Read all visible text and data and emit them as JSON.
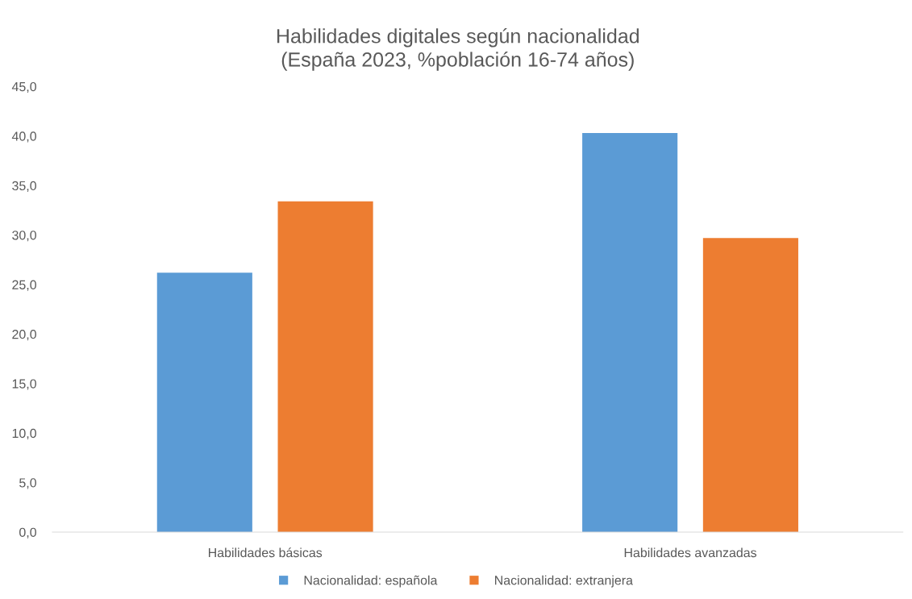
{
  "chart_data": {
    "type": "bar",
    "title": "Habilidades digitales según nacionalidad\n(España 2023, %población 16-74 años)",
    "categories": [
      "Habilidades básicas",
      "Habilidades avanzadas"
    ],
    "series": [
      {
        "name": "Nacionalidad: española",
        "color": "#5b9bd5",
        "values": [
          26.2,
          40.3
        ]
      },
      {
        "name": "Nacionalidad: extranjera",
        "color": "#ed7d31",
        "values": [
          33.4,
          29.7
        ]
      }
    ],
    "ylim": [
      0,
      45
    ],
    "yticks": [
      {
        "value": 0,
        "label": "0,0"
      },
      {
        "value": 5,
        "label": "5,0"
      },
      {
        "value": 10,
        "label": "10,0"
      },
      {
        "value": 15,
        "label": "15,0"
      },
      {
        "value": 20,
        "label": "20,0"
      },
      {
        "value": 25,
        "label": "25,0"
      },
      {
        "value": 30,
        "label": "30,0"
      },
      {
        "value": 35,
        "label": "35,0"
      },
      {
        "value": 40,
        "label": "40,0"
      },
      {
        "value": 45,
        "label": "45,0"
      }
    ],
    "grid": false,
    "legend": "bottom"
  }
}
